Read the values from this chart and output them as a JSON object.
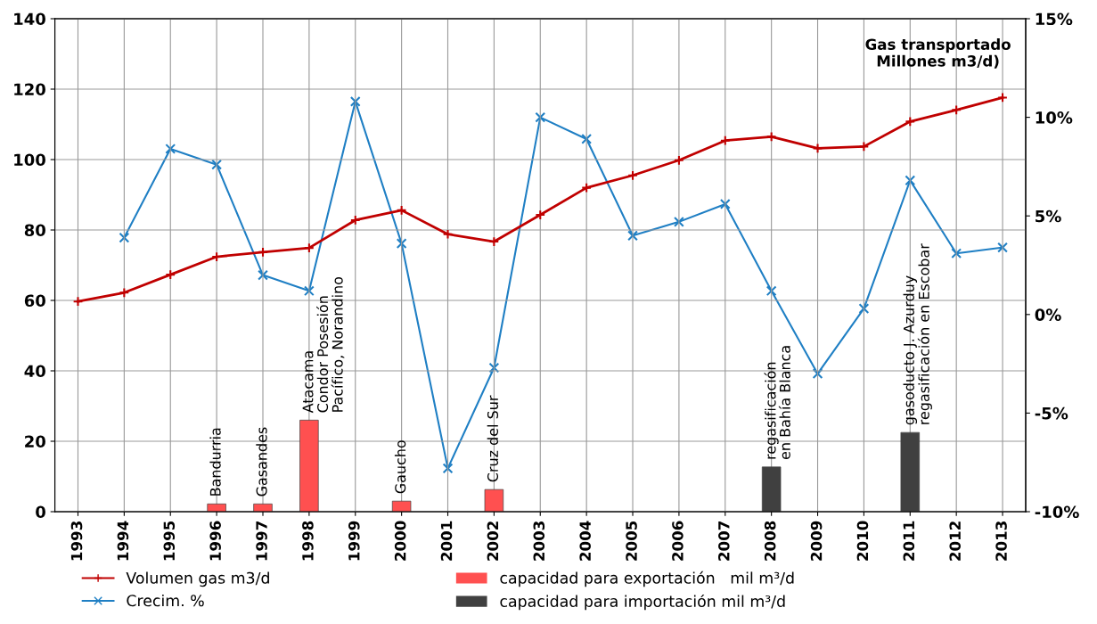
{
  "chart_data": {
    "type": "line",
    "categories": [
      "1993",
      "1994",
      "1995",
      "1996",
      "1997",
      "1998",
      "1999",
      "2000",
      "2001",
      "2002",
      "2003",
      "2004",
      "2005",
      "2006",
      "2007",
      "2008",
      "2009",
      "2010",
      "2011",
      "2012",
      "2013"
    ],
    "series": [
      {
        "name": "Volumen gas m3/d",
        "color": "#c00000",
        "marker": "cross",
        "values": [
          59.7,
          62.2,
          67.3,
          72.4,
          73.7,
          74.9,
          82.8,
          85.6,
          78.8,
          76.7,
          84.3,
          92.0,
          95.5,
          99.8,
          105.4,
          106.5,
          103.2,
          103.7,
          110.8,
          114.1,
          117.6
        ]
      },
      {
        "name": "Crecim. %",
        "axis": "y2",
        "color": "#1f7fc4",
        "marker": "x",
        "values": [
          null,
          3.9,
          8.4,
          7.6,
          2.0,
          1.2,
          10.8,
          3.6,
          -7.8,
          -2.7,
          10.0,
          8.9,
          4.0,
          4.7,
          5.6,
          1.2,
          -3.0,
          0.3,
          6.8,
          3.1,
          3.4
        ]
      },
      {
        "name": "capacidad para exportación   mil m³/d",
        "type": "bar",
        "color": "#ff5050",
        "values": [
          null,
          null,
          null,
          2.2,
          2.2,
          26,
          null,
          3,
          null,
          6.3,
          null,
          null,
          null,
          null,
          null,
          null,
          null,
          null,
          null,
          null,
          null
        ]
      },
      {
        "name": "capacidad para importación mil m³/d",
        "type": "bar",
        "color": "#404040",
        "values": [
          null,
          null,
          null,
          null,
          null,
          null,
          null,
          null,
          null,
          null,
          null,
          null,
          null,
          null,
          null,
          12.7,
          null,
          null,
          22.5,
          null,
          null
        ]
      }
    ],
    "ylim": [
      0,
      140
    ],
    "yticks": [
      0,
      20,
      40,
      60,
      80,
      100,
      120,
      140
    ],
    "y2lim": [
      -10,
      15
    ],
    "y2ticks": [
      {
        "value": -10,
        "label": "-10%"
      },
      {
        "value": -5,
        "label": "-5%"
      },
      {
        "value": 0,
        "label": "0%"
      },
      {
        "value": 5,
        "label": "5%"
      },
      {
        "value": 10,
        "label": "10%"
      },
      {
        "value": 15,
        "label": "15%"
      }
    ],
    "grid": true,
    "legend": "bottom",
    "annotations": [
      "Gas transportado\nMillones m3/d)",
      {
        "text": "Bandurria",
        "x": "1996",
        "y": 2.2
      },
      {
        "text": "Gasandes",
        "x": "1997",
        "y": 2.2
      },
      {
        "text": "Atacama",
        "x": "1998",
        "y": 26
      },
      {
        "text": "Condor Posesión",
        "x": "1998",
        "y": 26
      },
      {
        "text": "Pacífico, Norandino",
        "x": "1998",
        "y": 26
      },
      {
        "text": "Gaucho",
        "x": "2000",
        "y": 3
      },
      {
        "text": "Cruz del Sur",
        "x": "2002",
        "y": 6.3
      },
      {
        "text": "regasificación",
        "x": "2008",
        "y": 12.7
      },
      {
        "text": "en Bahía Blanca",
        "x": "2008",
        "y": 12.7
      },
      {
        "text": "gasoducto J. Azurduy",
        "x": "2011",
        "y": 22.5
      },
      {
        "text": "regasificación en Escobar",
        "x": "2011",
        "y": 22.5
      }
    ]
  }
}
